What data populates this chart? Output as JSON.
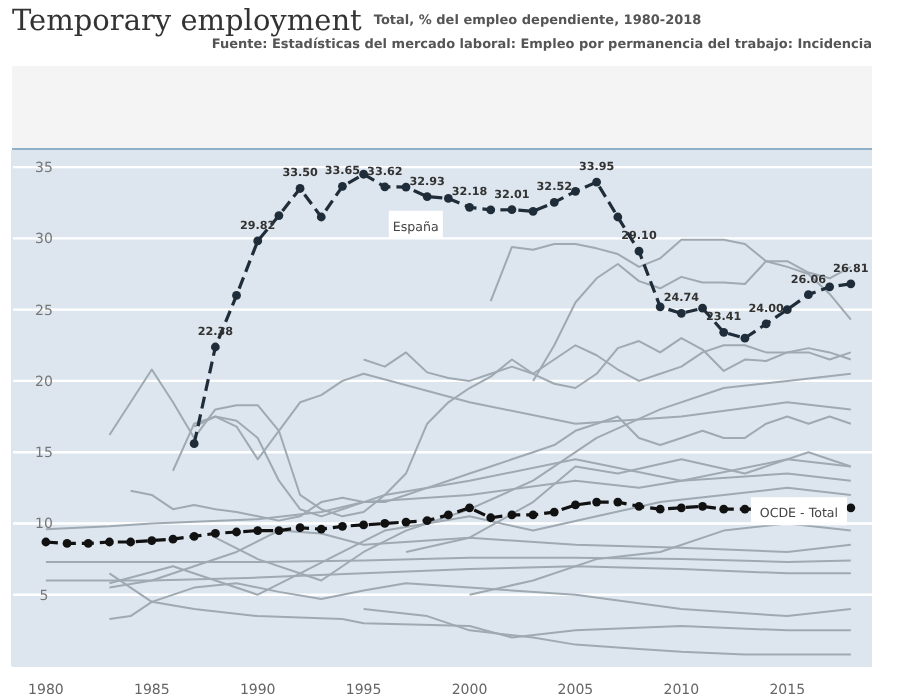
{
  "chart_data": {
    "type": "line",
    "title": "Temporary employment",
    "subtitle": "Total, % del empleo dependiente, 1980-2018",
    "annotations": [
      "Fuente: Estadísticas del mercado laboral: Empleo por permanencia del trabajo: Incidencia"
    ],
    "xlim": [
      1978.4,
      2019
    ],
    "xticks": [
      1980,
      1985,
      1990,
      1995,
      2000,
      2005,
      2010,
      2015
    ],
    "ylim": [
      0,
      36.2
    ],
    "yticks": [
      5,
      10,
      15,
      20,
      25,
      30,
      35
    ],
    "grid": "y",
    "series": [
      {
        "color": "#9ea9b2",
        "x": [
          2001,
          2002,
          2003,
          2004,
          2005,
          2006,
          2007,
          2008,
          2009,
          2010,
          2011,
          2012,
          2013,
          2014,
          2015,
          2016,
          2017,
          2018
        ],
        "values": [
          25.6,
          29.4,
          29.2,
          29.6,
          29.6,
          29.3,
          28.9,
          28.0,
          28.6,
          29.9,
          29.9,
          29.9,
          29.6,
          28.4,
          28.4,
          27.6,
          27.2,
          28.0
        ]
      },
      {
        "color": "#9ea9b2",
        "x": [
          2003,
          2004,
          2005,
          2006,
          2007,
          2008,
          2009,
          2010,
          2011,
          2012,
          2013,
          2014,
          2015,
          2016,
          2017,
          2018
        ],
        "values": [
          20.0,
          22.5,
          25.5,
          27.2,
          28.2,
          27.0,
          26.5,
          27.3,
          26.9,
          26.9,
          26.8,
          28.4,
          28.0,
          27.5,
          26.1,
          24.3
        ]
      },
      {
        "color": "#9ea9b2",
        "x": [
          1995,
          1996,
          1997,
          1998,
          1999,
          2000,
          2001,
          2002,
          2003,
          2004,
          2005,
          2006,
          2007,
          2008,
          2009,
          2010,
          2011,
          2012,
          2013,
          2014,
          2015,
          2016,
          2017,
          2018
        ],
        "values": [
          21.5,
          21.0,
          22.0,
          20.6,
          20.2,
          20.0,
          20.5,
          21.0,
          20.5,
          21.5,
          22.5,
          21.8,
          20.8,
          20.0,
          20.5,
          21.0,
          22.0,
          22.5,
          22.5,
          22.0,
          22.0,
          22.0,
          21.5,
          22.0
        ]
      },
      {
        "color": "#9ea9b2",
        "x": [
          1983,
          1984,
          1985,
          1986,
          1987,
          1988,
          1989,
          1990,
          1991,
          1992,
          1993,
          1994,
          1995,
          1996,
          1997,
          1998,
          1999,
          2000,
          2001,
          2002,
          2003,
          2004,
          2005,
          2006,
          2007,
          2008,
          2009,
          2010,
          2011,
          2012,
          2013,
          2014,
          2015,
          2016,
          2017,
          2018
        ],
        "values": [
          16.2,
          18.5,
          20.8,
          18.5,
          16.0,
          18.0,
          18.3,
          18.3,
          16.5,
          12.0,
          11.0,
          10.5,
          10.8,
          12.0,
          13.5,
          17.0,
          18.5,
          19.5,
          20.3,
          21.5,
          20.5,
          19.8,
          19.5,
          20.5,
          22.3,
          22.8,
          22.0,
          23.0,
          22.2,
          20.7,
          21.5,
          21.4,
          22.0,
          22.3,
          22.0,
          21.5
        ]
      },
      {
        "color": "#9ea9b2",
        "x": [
          1986,
          1987,
          1988,
          1989,
          1990,
          1991,
          1992,
          1993,
          1994,
          1995,
          2000,
          2005,
          2010,
          2015,
          2018
        ],
        "values": [
          13.7,
          17.0,
          17.5,
          16.8,
          14.5,
          16.5,
          18.5,
          19.0,
          20.0,
          20.5,
          18.5,
          17.0,
          17.5,
          18.5,
          18.0
        ]
      },
      {
        "color": "#9ea9b2",
        "x": [
          1987,
          1988,
          1989,
          1990,
          1991,
          1992,
          1993,
          1994,
          1995,
          1996,
          2000,
          2005,
          2010,
          2015,
          2018
        ],
        "values": [
          16.8,
          17.5,
          17.2,
          16.0,
          13.0,
          11.0,
          10.5,
          11.0,
          11.5,
          12.0,
          13.0,
          14.5,
          13.0,
          14.5,
          14.0
        ]
      },
      {
        "color": "#9ea9b2",
        "x": [
          1984,
          1985,
          1986,
          1987,
          1988,
          1989,
          1990,
          1991,
          1992,
          1993,
          1994,
          1995,
          1996,
          1997,
          1998,
          1999,
          2000,
          2001,
          2002,
          2003,
          2004,
          2005,
          2006,
          2007,
          2008,
          2009,
          2010,
          2011,
          2012,
          2013,
          2014,
          2015,
          2016,
          2017,
          2018
        ],
        "values": [
          12.3,
          12.0,
          11.0,
          11.3,
          11.0,
          10.8,
          10.5,
          10.2,
          10.5,
          11.5,
          11.8,
          11.5,
          11.5,
          12.0,
          12.5,
          13.0,
          13.5,
          14.0,
          14.5,
          15.0,
          15.5,
          16.5,
          17.0,
          17.5,
          16.0,
          15.5,
          16.0,
          16.5,
          16.0,
          16.0,
          17.0,
          17.5,
          17.0,
          17.5,
          17.0
        ]
      },
      {
        "color": "#9ea9b2",
        "x": [
          1980,
          1985,
          1990,
          1995,
          2000,
          2005,
          2010,
          2015,
          2018
        ],
        "values": [
          7.3,
          7.3,
          7.3,
          7.4,
          7.6,
          7.6,
          7.5,
          7.3,
          7.4
        ]
      },
      {
        "color": "#9ea9b2",
        "x": [
          1980,
          1985,
          1990,
          1995,
          2000,
          2005,
          2010,
          2015,
          2018
        ],
        "values": [
          6.0,
          6.0,
          6.2,
          6.5,
          6.8,
          7.0,
          6.8,
          6.5,
          6.5
        ]
      },
      {
        "color": "#9ea9b2",
        "x": [
          1980,
          1983,
          1985,
          1990,
          1993,
          1995,
          2000,
          2005,
          2008,
          2010,
          2015,
          2018
        ],
        "values": [
          9.6,
          9.8,
          10.0,
          10.3,
          10.8,
          11.5,
          12.0,
          13.0,
          12.5,
          13.0,
          13.5,
          13.0
        ]
      },
      {
        "color": "#9ea9b2",
        "x": [
          1983,
          1984,
          1985,
          1987,
          1990,
          1994,
          1995,
          2000,
          2002,
          2005,
          2010,
          2015,
          2018
        ],
        "values": [
          3.3,
          3.5,
          4.5,
          4.0,
          3.5,
          3.3,
          3.0,
          2.8,
          2.0,
          2.5,
          2.8,
          2.5,
          2.5
        ]
      },
      {
        "color": "#9ea9b2",
        "x": [
          1983,
          1985,
          1987,
          1989,
          1991,
          1993,
          1995,
          2000,
          2005,
          2010,
          2015,
          2018
        ],
        "values": [
          5.5,
          6.0,
          7.0,
          8.0,
          9.5,
          9.3,
          8.5,
          9.0,
          8.5,
          8.3,
          8.0,
          8.5
        ]
      },
      {
        "color": "#9ea9b2",
        "x": [
          1983,
          1985,
          1987,
          1989,
          1991,
          1993,
          1995,
          1997,
          2000,
          2005,
          2010,
          2015,
          2018
        ],
        "values": [
          6.5,
          4.5,
          5.5,
          5.8,
          5.2,
          4.7,
          5.3,
          5.8,
          5.5,
          5.0,
          4.0,
          3.5,
          4.0
        ]
      },
      {
        "color": "#9ea9b2",
        "x": [
          1983,
          1986,
          1988,
          1990,
          1992,
          1994,
          1996,
          1998,
          2000,
          2003,
          2006,
          2009,
          2012,
          2015,
          2018
        ],
        "values": [
          5.8,
          7.0,
          6.0,
          5.0,
          6.5,
          8.0,
          9.5,
          10.0,
          10.5,
          9.5,
          10.5,
          11.5,
          12.0,
          12.5,
          12.0
        ]
      },
      {
        "color": "#9ea9b2",
        "x": [
          1995,
          1998,
          2000,
          2003,
          2005,
          2008,
          2010,
          2013,
          2016,
          2018
        ],
        "values": [
          4.0,
          3.5,
          2.5,
          2.0,
          1.5,
          1.2,
          1.0,
          0.8,
          0.8,
          0.8
        ]
      },
      {
        "color": "#9ea9b2",
        "x": [
          1988,
          1990,
          1993,
          1995,
          1997,
          2000,
          2003,
          2006,
          2009,
          2012,
          2015,
          2018
        ],
        "values": [
          9.0,
          7.5,
          6.0,
          8.0,
          9.5,
          11.0,
          13.0,
          16.0,
          18.0,
          19.5,
          20.0,
          20.5
        ]
      },
      {
        "color": "#9ea9b2",
        "x": [
          1997,
          2000,
          2003,
          2005,
          2007,
          2010,
          2013,
          2016,
          2018
        ],
        "values": [
          8.0,
          9.0,
          11.5,
          14.0,
          13.5,
          14.5,
          13.5,
          15.0,
          14.0
        ]
      },
      {
        "color": "#9ea9b2",
        "x": [
          2000,
          2003,
          2006,
          2009,
          2012,
          2015,
          2018
        ],
        "values": [
          5.0,
          6.0,
          7.5,
          8.0,
          9.5,
          10.0,
          9.5
        ]
      },
      {
        "name": "OCDE - Total",
        "color": "#111111",
        "marker": "circle",
        "line_style": "dashed",
        "x": [
          1980,
          1981,
          1982,
          1983,
          1984,
          1985,
          1986,
          1987,
          1988,
          1989,
          1990,
          1991,
          1992,
          1993,
          1994,
          1995,
          1996,
          1997,
          1998,
          1999,
          2000,
          2001,
          2002,
          2003,
          2004,
          2005,
          2006,
          2007,
          2008,
          2009,
          2010,
          2011,
          2012,
          2013,
          2014,
          2015,
          2016,
          2017,
          2018
        ],
        "values": [
          8.7,
          8.6,
          8.6,
          8.7,
          8.7,
          8.8,
          8.9,
          9.1,
          9.3,
          9.4,
          9.5,
          9.5,
          9.7,
          9.6,
          9.8,
          9.9,
          10.0,
          10.1,
          10.2,
          10.6,
          11.1,
          10.4,
          10.6,
          10.6,
          10.8,
          11.3,
          11.5,
          11.5,
          11.2,
          11.0,
          11.1,
          11.2,
          11.0,
          11.0,
          null,
          null,
          null,
          null,
          11.1
        ]
      },
      {
        "name": "España",
        "color": "#1f2d3a",
        "marker": "circle",
        "line_style": "dashed",
        "x": [
          1987,
          1988,
          1989,
          1990,
          1991,
          1992,
          1993,
          1994,
          1995,
          1996,
          1997,
          1998,
          1999,
          2000,
          2001,
          2002,
          2003,
          2004,
          2005,
          2006,
          2007,
          2008,
          2009,
          2010,
          2011,
          2012,
          2013,
          2014,
          2015,
          2016,
          2017,
          2018
        ],
        "values": [
          15.6,
          22.38,
          26.0,
          29.82,
          31.6,
          33.5,
          31.5,
          33.65,
          34.5,
          33.62,
          33.6,
          32.93,
          32.8,
          32.18,
          32.0,
          32.01,
          31.9,
          32.52,
          33.3,
          33.95,
          31.5,
          29.1,
          25.2,
          24.74,
          25.1,
          23.41,
          23.0,
          24.0,
          25.0,
          26.06,
          26.6,
          26.81
        ],
        "value_labels": [
          null,
          "22.38",
          null,
          "29.82",
          null,
          "33.50",
          null,
          "33.65",
          null,
          "33.62",
          null,
          "32.93",
          null,
          "32.18",
          null,
          "32.01",
          null,
          "32.52",
          null,
          "33.95",
          null,
          "29.10",
          null,
          "24.74",
          null,
          "23.41",
          null,
          "24.00",
          null,
          "26.06",
          null,
          "26.81"
        ]
      }
    ]
  }
}
